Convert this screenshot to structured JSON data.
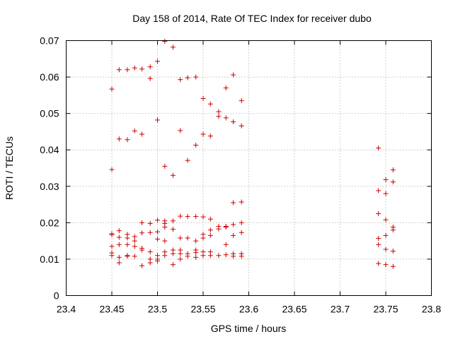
{
  "chart_data": {
    "type": "scatter",
    "title": "Day 158 of 2014, Rate Of TEC Index for receiver dubo",
    "xlabel": "GPS time / hours",
    "ylabel": "ROTI / TECUs",
    "xlim": [
      23.4,
      23.8
    ],
    "ylim": [
      0,
      0.07
    ],
    "grid": true,
    "marker": "+",
    "color": "#cc0000",
    "x_ticks": [
      "23.4",
      "23.45",
      "23.5",
      "23.55",
      "23.6",
      "23.65",
      "23.7",
      "23.75",
      "23.8"
    ],
    "y_ticks": [
      "0",
      "0.01",
      "0.02",
      "0.03",
      "0.04",
      "0.05",
      "0.06",
      "0.07"
    ],
    "series": [
      {
        "name": "ROTI",
        "points": [
          [
            23.45,
            0.0567
          ],
          [
            23.45,
            0.0346
          ],
          [
            23.45,
            0.017
          ],
          [
            23.45,
            0.0167
          ],
          [
            23.45,
            0.0135
          ],
          [
            23.45,
            0.0117
          ],
          [
            23.45,
            0.011
          ],
          [
            23.458,
            0.062
          ],
          [
            23.458,
            0.043
          ],
          [
            23.458,
            0.0178
          ],
          [
            23.458,
            0.016
          ],
          [
            23.458,
            0.014
          ],
          [
            23.458,
            0.0105
          ],
          [
            23.458,
            0.009
          ],
          [
            23.467,
            0.062
          ],
          [
            23.467,
            0.0428
          ],
          [
            23.467,
            0.0168
          ],
          [
            23.467,
            0.0158
          ],
          [
            23.467,
            0.014
          ],
          [
            23.467,
            0.011
          ],
          [
            23.467,
            0.0108
          ],
          [
            23.475,
            0.0625
          ],
          [
            23.475,
            0.0452
          ],
          [
            23.475,
            0.0162
          ],
          [
            23.475,
            0.015
          ],
          [
            23.475,
            0.0135
          ],
          [
            23.475,
            0.0108
          ],
          [
            23.483,
            0.0622
          ],
          [
            23.483,
            0.0443
          ],
          [
            23.483,
            0.02
          ],
          [
            23.483,
            0.0172
          ],
          [
            23.483,
            0.013
          ],
          [
            23.483,
            0.0125
          ],
          [
            23.483,
            0.0082
          ],
          [
            23.492,
            0.0628
          ],
          [
            23.492,
            0.0596
          ],
          [
            23.492,
            0.0198
          ],
          [
            23.492,
            0.0173
          ],
          [
            23.492,
            0.012
          ],
          [
            23.492,
            0.01
          ],
          [
            23.492,
            0.009
          ],
          [
            23.5,
            0.0643
          ],
          [
            23.5,
            0.0482
          ],
          [
            23.5,
            0.0207
          ],
          [
            23.5,
            0.0175
          ],
          [
            23.5,
            0.0155
          ],
          [
            23.5,
            0.011
          ],
          [
            23.5,
            0.01
          ],
          [
            23.5,
            0.0095
          ],
          [
            23.508,
            0.0698
          ],
          [
            23.508,
            0.0355
          ],
          [
            23.508,
            0.0205
          ],
          [
            23.508,
            0.0198
          ],
          [
            23.508,
            0.0188
          ],
          [
            23.508,
            0.015
          ],
          [
            23.508,
            0.012
          ],
          [
            23.508,
            0.011
          ],
          [
            23.517,
            0.0682
          ],
          [
            23.517,
            0.033
          ],
          [
            23.517,
            0.0205
          ],
          [
            23.517,
            0.0182
          ],
          [
            23.517,
            0.0125
          ],
          [
            23.517,
            0.0115
          ],
          [
            23.517,
            0.0085
          ],
          [
            23.525,
            0.0593
          ],
          [
            23.525,
            0.0453
          ],
          [
            23.525,
            0.0218
          ],
          [
            23.525,
            0.0158
          ],
          [
            23.525,
            0.0125
          ],
          [
            23.525,
            0.0115
          ],
          [
            23.525,
            0.01
          ],
          [
            23.533,
            0.0598
          ],
          [
            23.533,
            0.0371
          ],
          [
            23.533,
            0.0217
          ],
          [
            23.533,
            0.0158
          ],
          [
            23.533,
            0.0115
          ],
          [
            23.533,
            0.0108
          ],
          [
            23.542,
            0.06
          ],
          [
            23.542,
            0.0413
          ],
          [
            23.542,
            0.0217
          ],
          [
            23.542,
            0.015
          ],
          [
            23.542,
            0.0125
          ],
          [
            23.542,
            0.0118
          ],
          [
            23.542,
            0.0105
          ],
          [
            23.55,
            0.0541
          ],
          [
            23.55,
            0.0443
          ],
          [
            23.55,
            0.0216
          ],
          [
            23.55,
            0.0168
          ],
          [
            23.55,
            0.0158
          ],
          [
            23.55,
            0.012
          ],
          [
            23.55,
            0.011
          ],
          [
            23.558,
            0.0526
          ],
          [
            23.558,
            0.0438
          ],
          [
            23.558,
            0.021
          ],
          [
            23.558,
            0.018
          ],
          [
            23.558,
            0.0165
          ],
          [
            23.558,
            0.012
          ],
          [
            23.558,
            0.011
          ],
          [
            23.567,
            0.0505
          ],
          [
            23.567,
            0.0492
          ],
          [
            23.567,
            0.019
          ],
          [
            23.567,
            0.0183
          ],
          [
            23.567,
            0.011
          ],
          [
            23.575,
            0.057
          ],
          [
            23.575,
            0.0488
          ],
          [
            23.575,
            0.019
          ],
          [
            23.575,
            0.0188
          ],
          [
            23.575,
            0.014
          ],
          [
            23.575,
            0.0112
          ],
          [
            23.583,
            0.0606
          ],
          [
            23.583,
            0.0477
          ],
          [
            23.583,
            0.0255
          ],
          [
            23.583,
            0.0195
          ],
          [
            23.583,
            0.0165
          ],
          [
            23.583,
            0.0115
          ],
          [
            23.583,
            0.0108
          ],
          [
            23.592,
            0.0535
          ],
          [
            23.592,
            0.0466
          ],
          [
            23.592,
            0.0257
          ],
          [
            23.592,
            0.02
          ],
          [
            23.592,
            0.0173
          ],
          [
            23.592,
            0.0115
          ],
          [
            23.592,
            0.0108
          ],
          [
            23.742,
            0.0405
          ],
          [
            23.742,
            0.0288
          ],
          [
            23.742,
            0.0225
          ],
          [
            23.742,
            0.0157
          ],
          [
            23.742,
            0.014
          ],
          [
            23.742,
            0.0088
          ],
          [
            23.75,
            0.0318
          ],
          [
            23.75,
            0.028
          ],
          [
            23.75,
            0.0208
          ],
          [
            23.75,
            0.0165
          ],
          [
            23.75,
            0.0127
          ],
          [
            23.75,
            0.0085
          ],
          [
            23.758,
            0.0345
          ],
          [
            23.758,
            0.0312
          ],
          [
            23.758,
            0.0188
          ],
          [
            23.758,
            0.018
          ],
          [
            23.758,
            0.0122
          ],
          [
            23.758,
            0.008
          ]
        ]
      }
    ]
  }
}
